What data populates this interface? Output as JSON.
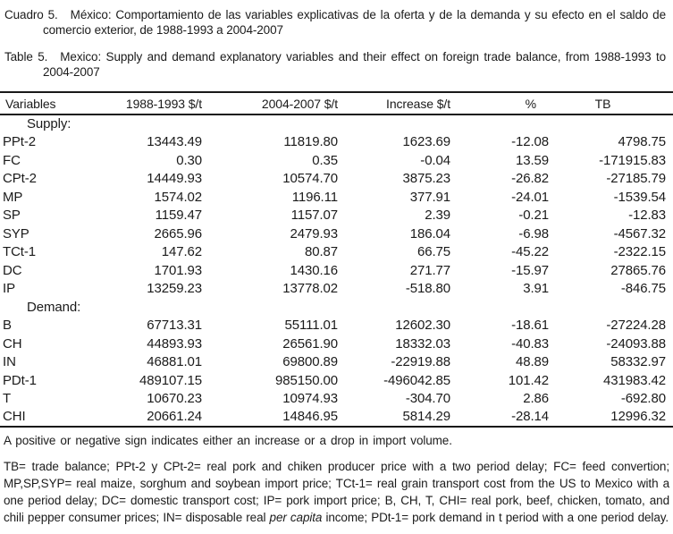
{
  "titles": {
    "cuadro_label": "Cuadro 5.",
    "cuadro_text": "México: Comportamiento de las variables explicativas de la oferta y de la demanda y su efecto en el saldo de comercio exterior, de 1988-1993 a 2004-2007",
    "table_label": "Table 5.",
    "table_text": "Mexico: Supply and demand explanatory variables and their effect on foreign trade balance, from 1988-1993 to 2004-2007"
  },
  "table": {
    "headers": [
      "Variables",
      "1988-1993 $/t",
      "2004-2007 $/t",
      "Increase $/t",
      "%",
      "TB"
    ],
    "sections": [
      {
        "label": "Supply:",
        "rows": [
          {
            "variable": "PPt-2",
            "values": [
              "13443.49",
              "11819.80",
              "1623.69",
              "-12.08",
              "4798.75"
            ]
          },
          {
            "variable": "FC",
            "values": [
              "0.30",
              "0.35",
              "-0.04",
              "13.59",
              "-171915.83"
            ]
          },
          {
            "variable": "CPt-2",
            "values": [
              "14449.93",
              "10574.70",
              "3875.23",
              "-26.82",
              "-27185.79"
            ]
          },
          {
            "variable": "MP",
            "values": [
              "1574.02",
              "1196.11",
              "377.91",
              "-24.01",
              "-1539.54"
            ]
          },
          {
            "variable": "SP",
            "values": [
              "1159.47",
              "1157.07",
              "2.39",
              "-0.21",
              "-12.83"
            ]
          },
          {
            "variable": "SYP",
            "values": [
              "2665.96",
              "2479.93",
              "186.04",
              "-6.98",
              "-4567.32"
            ]
          },
          {
            "variable": "TCt-1",
            "values": [
              "147.62",
              "80.87",
              "66.75",
              "-45.22",
              "-2322.15"
            ]
          },
          {
            "variable": "DC",
            "values": [
              "1701.93",
              "1430.16",
              "271.77",
              "-15.97",
              "27865.76"
            ]
          },
          {
            "variable": "IP",
            "values": [
              "13259.23",
              "13778.02",
              "-518.80",
              "3.91",
              "-846.75"
            ]
          }
        ]
      },
      {
        "label": "Demand:",
        "rows": [
          {
            "variable": "B",
            "values": [
              "67713.31",
              "55111.01",
              "12602.30",
              "-18.61",
              "-27224.28"
            ]
          },
          {
            "variable": "CH",
            "values": [
              "44893.93",
              "26561.90",
              "18332.03",
              "-40.83",
              "-24093.88"
            ]
          },
          {
            "variable": "IN",
            "values": [
              "46881.01",
              "69800.89",
              "-22919.88",
              "48.89",
              "58332.97"
            ]
          },
          {
            "variable": "PDt-1",
            "values": [
              "489107.15",
              "985150.00",
              "-496042.85",
              "101.42",
              "431983.42"
            ]
          },
          {
            "variable": "T",
            "values": [
              "10670.23",
              "10974.93",
              "-304.70",
              "2.86",
              "-692.80"
            ]
          },
          {
            "variable": "CHI",
            "values": [
              "20661.24",
              "14846.95",
              "5814.29",
              "-28.14",
              "12996.32"
            ]
          }
        ]
      }
    ],
    "note": "A positive or negative sign indicates either an increase or a drop in import volume."
  },
  "footnote": {
    "part1": "TB= trade balance; PPt-2 y CPt-2= real pork and chiken producer price with a two period delay; FC= feed convertion; MP,SP,SYP= real maize, sorghum and soybean import price; TCt-1= real grain transport cost from the US to Mexico with a one period delay; DC= domestic transport cost; IP= pork import price; B, CH, T, CHI= real pork, beef, chicken, tomato, and chili pepper consumer prices; IN= disposable real ",
    "italic": "per capita",
    "part2": " income; PDt-1= pork demand in t period with a one period delay."
  }
}
